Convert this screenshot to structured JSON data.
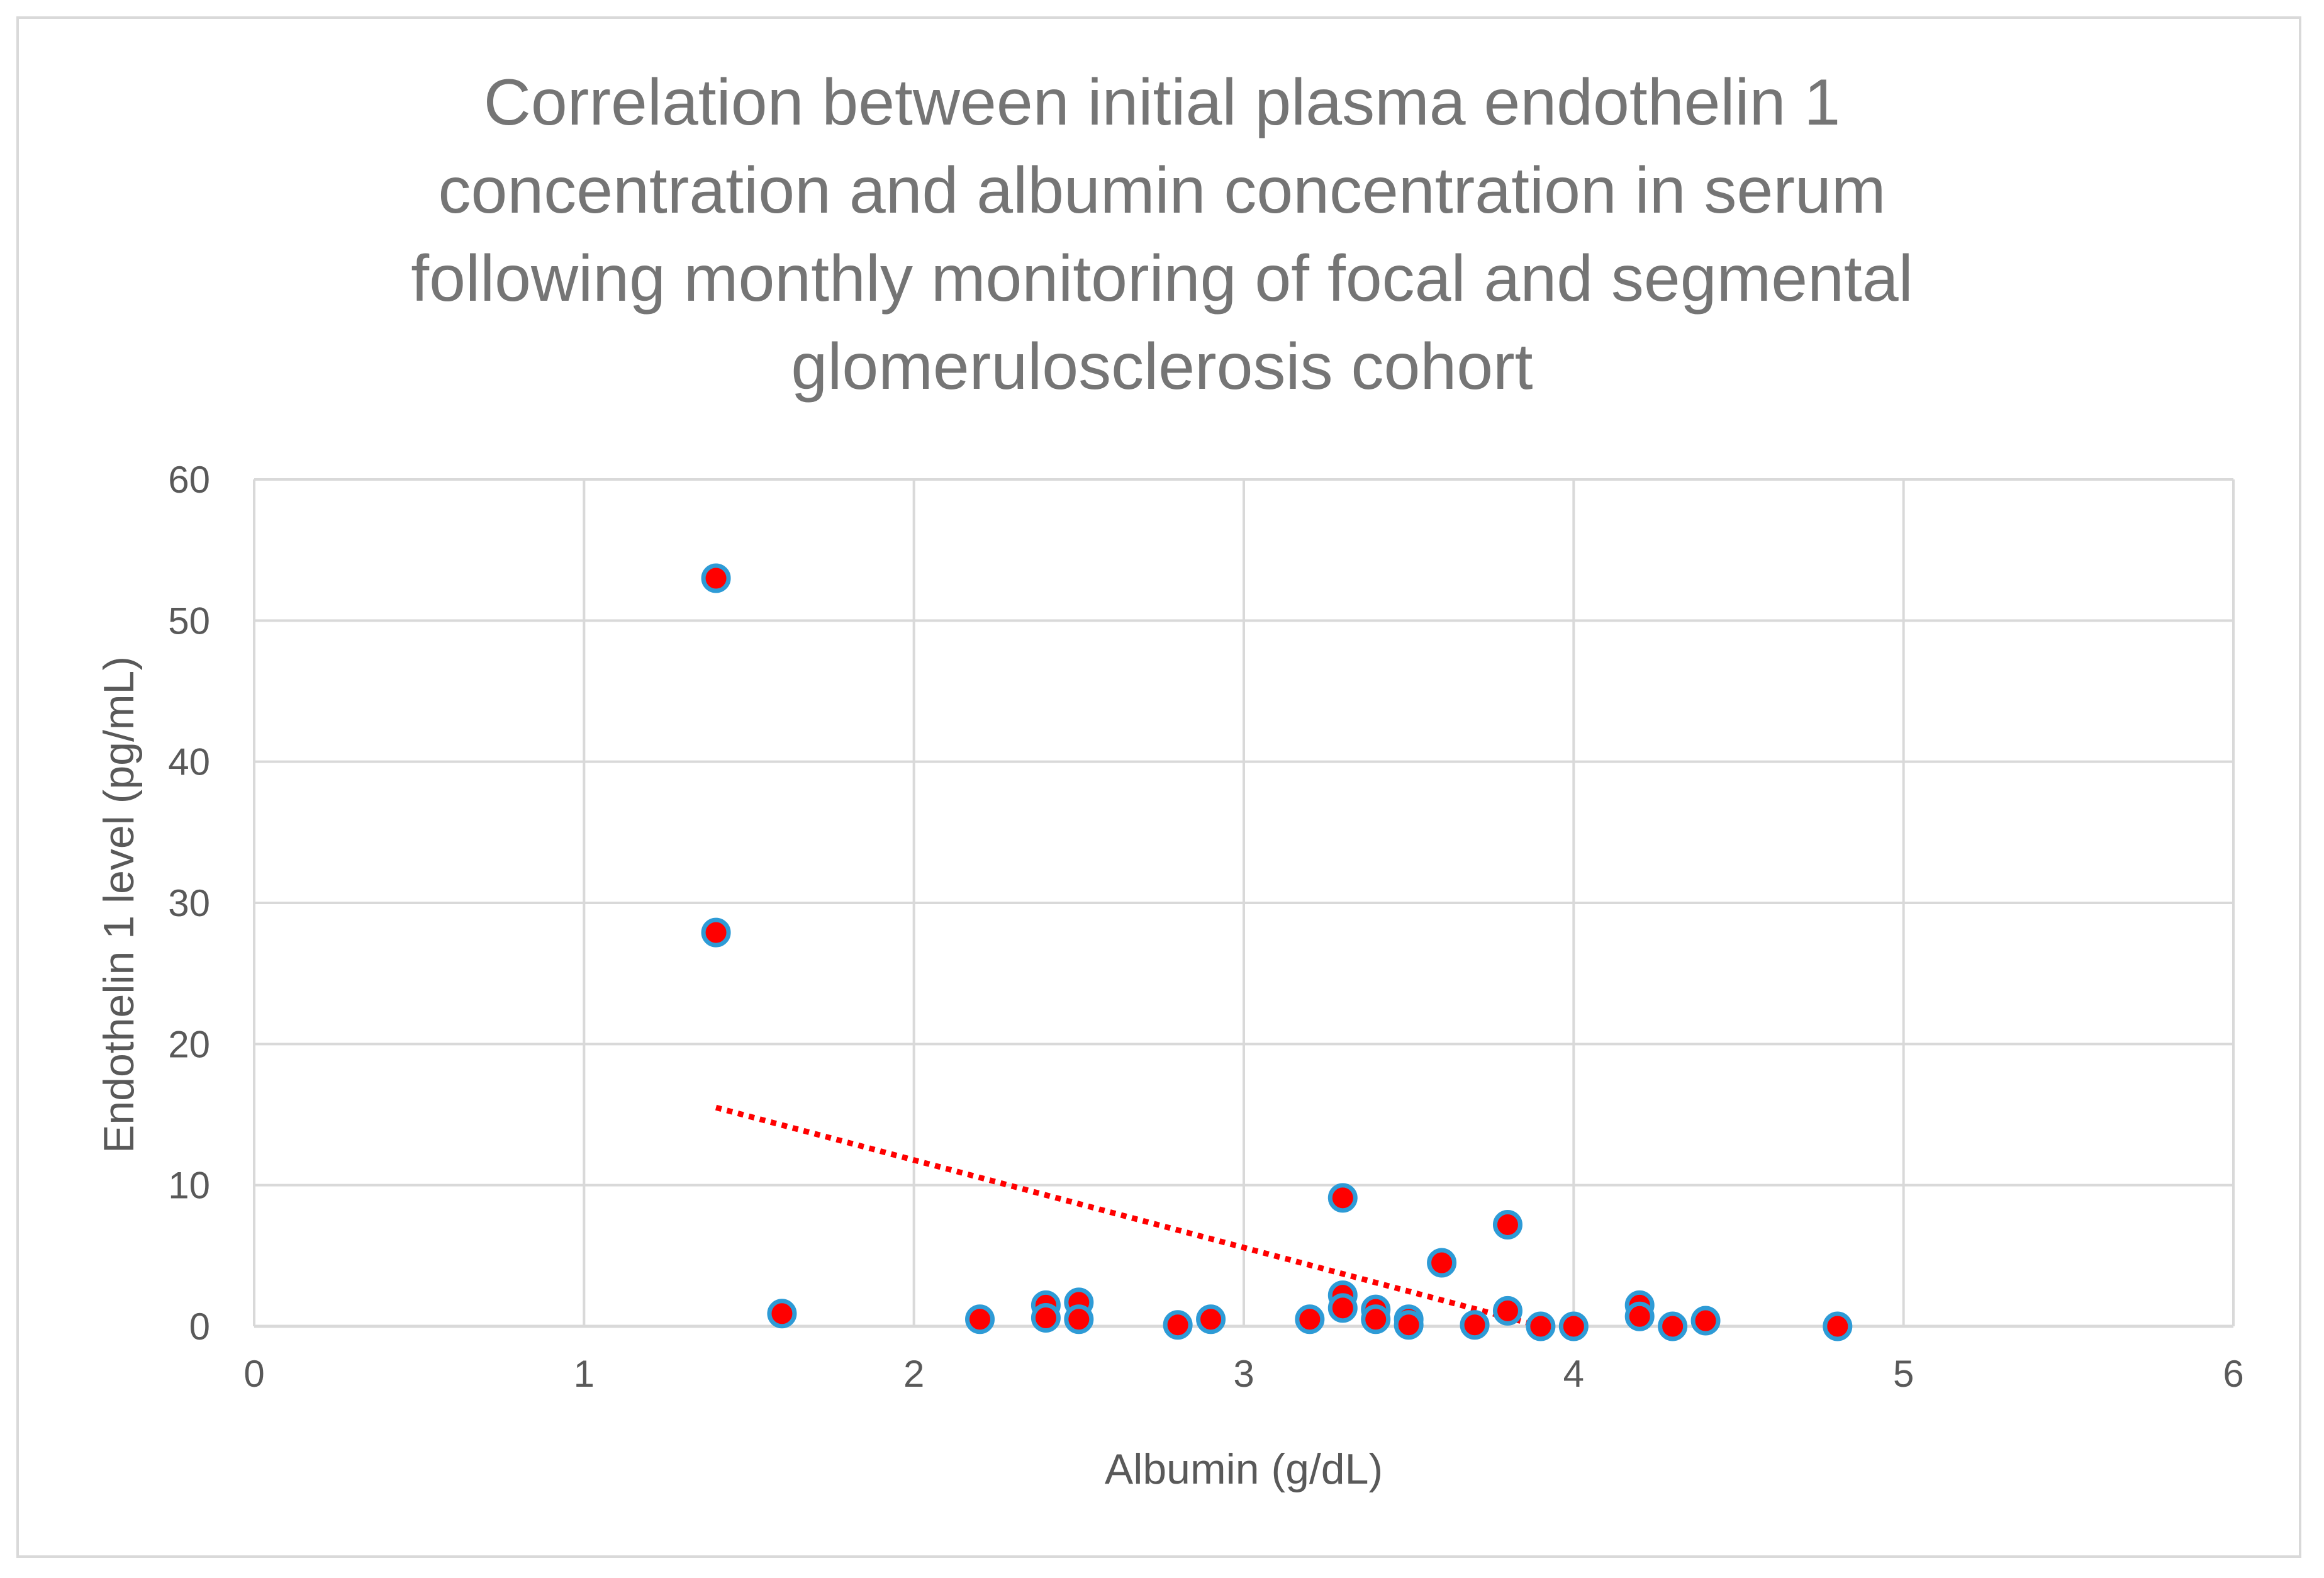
{
  "chart_data": {
    "type": "scatter",
    "title_lines": [
      "Correlation between initial plasma endothelin 1",
      "concentration and albumin concentration in serum",
      "following monthly monitoring of focal and segmental",
      "glomerulosclerosis cohort"
    ],
    "xlabel": "Albumin (g/dL)",
    "ylabel": "Endothelin 1  level (pg/mL)",
    "xlim": [
      0,
      6
    ],
    "ylim": [
      0,
      60
    ],
    "x_ticks": [
      0,
      1,
      2,
      3,
      4,
      5,
      6
    ],
    "y_ticks": [
      0,
      10,
      20,
      30,
      40,
      50,
      60
    ],
    "grid": true,
    "series": [
      {
        "name": "Endothelin 1",
        "marker_fill": "#ff0000",
        "marker_edge": "#2e9bd6",
        "points": [
          {
            "x": 1.4,
            "y": 53.0
          },
          {
            "x": 1.4,
            "y": 27.9
          },
          {
            "x": 1.6,
            "y": 0.9
          },
          {
            "x": 2.2,
            "y": 0.5
          },
          {
            "x": 2.4,
            "y": 1.5
          },
          {
            "x": 2.4,
            "y": 0.6
          },
          {
            "x": 2.5,
            "y": 1.7
          },
          {
            "x": 2.5,
            "y": 0.5
          },
          {
            "x": 2.8,
            "y": 0.1
          },
          {
            "x": 2.9,
            "y": 0.5
          },
          {
            "x": 3.2,
            "y": 0.5
          },
          {
            "x": 3.3,
            "y": 9.1
          },
          {
            "x": 3.3,
            "y": 2.2
          },
          {
            "x": 3.3,
            "y": 1.3
          },
          {
            "x": 3.4,
            "y": 1.2
          },
          {
            "x": 3.4,
            "y": 0.5
          },
          {
            "x": 3.5,
            "y": 0.5
          },
          {
            "x": 3.5,
            "y": 0.1
          },
          {
            "x": 3.6,
            "y": 4.5
          },
          {
            "x": 3.7,
            "y": 0.1
          },
          {
            "x": 3.8,
            "y": 7.2
          },
          {
            "x": 3.8,
            "y": 1.1
          },
          {
            "x": 3.9,
            "y": 0.0
          },
          {
            "x": 4.0,
            "y": 0.0
          },
          {
            "x": 4.2,
            "y": 1.5
          },
          {
            "x": 4.2,
            "y": 0.7
          },
          {
            "x": 4.3,
            "y": 0.0
          },
          {
            "x": 4.4,
            "y": 0.4
          },
          {
            "x": 4.8,
            "y": 0.0
          }
        ]
      }
    ],
    "trendline": {
      "type": "linear",
      "color": "#ff0000",
      "style": "dotted",
      "x_start": 1.4,
      "y_start": 15.5,
      "x_end": 3.9,
      "y_end": 0.0
    }
  }
}
